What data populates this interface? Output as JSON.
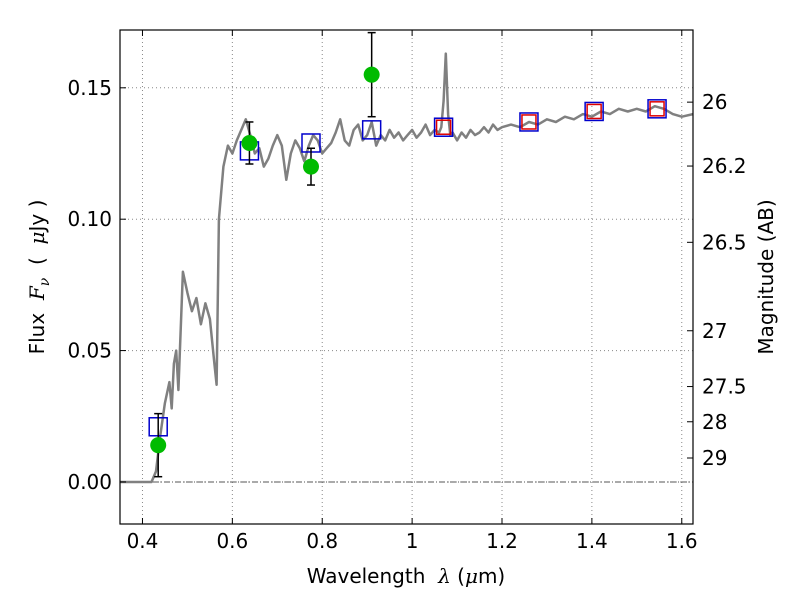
{
  "chart_data": {
    "type": "scatter",
    "xlabel": {
      "prefix": "Wavelength  ",
      "symbol": "λ",
      "unit_open": " (",
      "unit_mu": "μ",
      "unit_close": "m)"
    },
    "ylabel": {
      "prefix": "Flux  ",
      "symbol": "F",
      "subscript": "ν",
      "unit_open": "  (  ",
      "unit_mu": "μ",
      "unit_close": "Jy  )"
    },
    "y2label": "Magnitude (AB)",
    "xlim": [
      0.35,
      1.625
    ],
    "ylim": [
      -0.016,
      0.172
    ],
    "x_ticks": [
      0.4,
      0.6,
      0.8,
      1.0,
      1.2,
      1.4,
      1.6
    ],
    "x_tick_labels": [
      "0.4",
      "0.6",
      "0.8",
      "1",
      "1.2",
      "1.4",
      "1.6"
    ],
    "y_ticks": [
      0.0,
      0.05,
      0.1,
      0.15
    ],
    "y_tick_labels": [
      "0.00",
      "0.05",
      "0.10",
      "0.15"
    ],
    "mag_ticks": [
      26,
      26.2,
      26.5,
      27,
      27.5,
      28,
      29
    ],
    "mag_tick_labels": [
      "26",
      "26.2",
      "26.5",
      "27",
      "27.5",
      "28",
      "29"
    ],
    "grid": true,
    "zero_line": true,
    "colors": {
      "spectrum": "#808080",
      "observed": "#00bb00",
      "model_box": "#0000cc",
      "model_box_inner": "#dd0000",
      "error_bar": "#000000",
      "grid": "#888888"
    },
    "spectrum": [
      [
        0.35,
        0.0
      ],
      [
        0.42,
        0.0
      ],
      [
        0.43,
        0.004
      ],
      [
        0.44,
        0.018
      ],
      [
        0.45,
        0.03
      ],
      [
        0.46,
        0.038
      ],
      [
        0.465,
        0.028
      ],
      [
        0.47,
        0.045
      ],
      [
        0.475,
        0.05
      ],
      [
        0.48,
        0.035
      ],
      [
        0.49,
        0.08
      ],
      [
        0.5,
        0.072
      ],
      [
        0.51,
        0.065
      ],
      [
        0.52,
        0.07
      ],
      [
        0.53,
        0.06
      ],
      [
        0.54,
        0.068
      ],
      [
        0.55,
        0.062
      ],
      [
        0.56,
        0.045
      ],
      [
        0.565,
        0.037
      ],
      [
        0.57,
        0.1
      ],
      [
        0.58,
        0.12
      ],
      [
        0.59,
        0.128
      ],
      [
        0.6,
        0.125
      ],
      [
        0.61,
        0.13
      ],
      [
        0.62,
        0.134
      ],
      [
        0.63,
        0.138
      ],
      [
        0.64,
        0.132
      ],
      [
        0.65,
        0.125
      ],
      [
        0.66,
        0.127
      ],
      [
        0.67,
        0.12
      ],
      [
        0.68,
        0.123
      ],
      [
        0.69,
        0.128
      ],
      [
        0.7,
        0.132
      ],
      [
        0.71,
        0.128
      ],
      [
        0.72,
        0.115
      ],
      [
        0.73,
        0.125
      ],
      [
        0.74,
        0.13
      ],
      [
        0.75,
        0.127
      ],
      [
        0.76,
        0.122
      ],
      [
        0.77,
        0.128
      ],
      [
        0.78,
        0.132
      ],
      [
        0.79,
        0.13
      ],
      [
        0.8,
        0.125
      ],
      [
        0.81,
        0.127
      ],
      [
        0.82,
        0.129
      ],
      [
        0.83,
        0.133
      ],
      [
        0.84,
        0.138
      ],
      [
        0.85,
        0.13
      ],
      [
        0.86,
        0.128
      ],
      [
        0.87,
        0.134
      ],
      [
        0.88,
        0.136
      ],
      [
        0.89,
        0.13
      ],
      [
        0.9,
        0.132
      ],
      [
        0.91,
        0.137
      ],
      [
        0.92,
        0.128
      ],
      [
        0.93,
        0.132
      ],
      [
        0.94,
        0.13
      ],
      [
        0.95,
        0.134
      ],
      [
        0.96,
        0.131
      ],
      [
        0.97,
        0.133
      ],
      [
        0.98,
        0.13
      ],
      [
        0.99,
        0.132
      ],
      [
        1.0,
        0.134
      ],
      [
        1.01,
        0.131
      ],
      [
        1.02,
        0.133
      ],
      [
        1.03,
        0.136
      ],
      [
        1.04,
        0.132
      ],
      [
        1.05,
        0.134
      ],
      [
        1.06,
        0.133
      ],
      [
        1.065,
        0.135
      ],
      [
        1.07,
        0.145
      ],
      [
        1.075,
        0.163
      ],
      [
        1.08,
        0.14
      ],
      [
        1.085,
        0.132
      ],
      [
        1.09,
        0.133
      ],
      [
        1.1,
        0.13
      ],
      [
        1.11,
        0.133
      ],
      [
        1.12,
        0.131
      ],
      [
        1.13,
        0.134
      ],
      [
        1.14,
        0.132
      ],
      [
        1.15,
        0.133
      ],
      [
        1.16,
        0.135
      ],
      [
        1.17,
        0.133
      ],
      [
        1.18,
        0.136
      ],
      [
        1.19,
        0.134
      ],
      [
        1.2,
        0.135
      ],
      [
        1.22,
        0.136
      ],
      [
        1.24,
        0.135
      ],
      [
        1.26,
        0.137
      ],
      [
        1.28,
        0.136
      ],
      [
        1.3,
        0.138
      ],
      [
        1.32,
        0.137
      ],
      [
        1.34,
        0.139
      ],
      [
        1.36,
        0.138
      ],
      [
        1.38,
        0.14
      ],
      [
        1.4,
        0.139
      ],
      [
        1.42,
        0.141
      ],
      [
        1.44,
        0.14
      ],
      [
        1.46,
        0.142
      ],
      [
        1.48,
        0.141
      ],
      [
        1.5,
        0.142
      ],
      [
        1.52,
        0.141
      ],
      [
        1.54,
        0.143
      ],
      [
        1.56,
        0.142
      ],
      [
        1.58,
        0.14
      ],
      [
        1.6,
        0.139
      ],
      [
        1.625,
        0.14
      ]
    ],
    "observed": [
      {
        "x": 0.435,
        "y": 0.014,
        "err": 0.012
      },
      {
        "x": 0.638,
        "y": 0.129,
        "err": 0.008
      },
      {
        "x": 0.775,
        "y": 0.12,
        "err": 0.007
      },
      {
        "x": 0.91,
        "y": 0.155,
        "err": 0.016
      }
    ],
    "model": [
      {
        "x": 0.435,
        "y": 0.021,
        "inner": false
      },
      {
        "x": 0.638,
        "y": 0.126,
        "inner": false
      },
      {
        "x": 0.775,
        "y": 0.129,
        "inner": false
      },
      {
        "x": 0.91,
        "y": 0.134,
        "inner": false
      },
      {
        "x": 1.07,
        "y": 0.135,
        "inner": true
      },
      {
        "x": 1.26,
        "y": 0.137,
        "inner": true
      },
      {
        "x": 1.405,
        "y": 0.141,
        "inner": true
      },
      {
        "x": 1.545,
        "y": 0.142,
        "inner": true
      }
    ]
  }
}
